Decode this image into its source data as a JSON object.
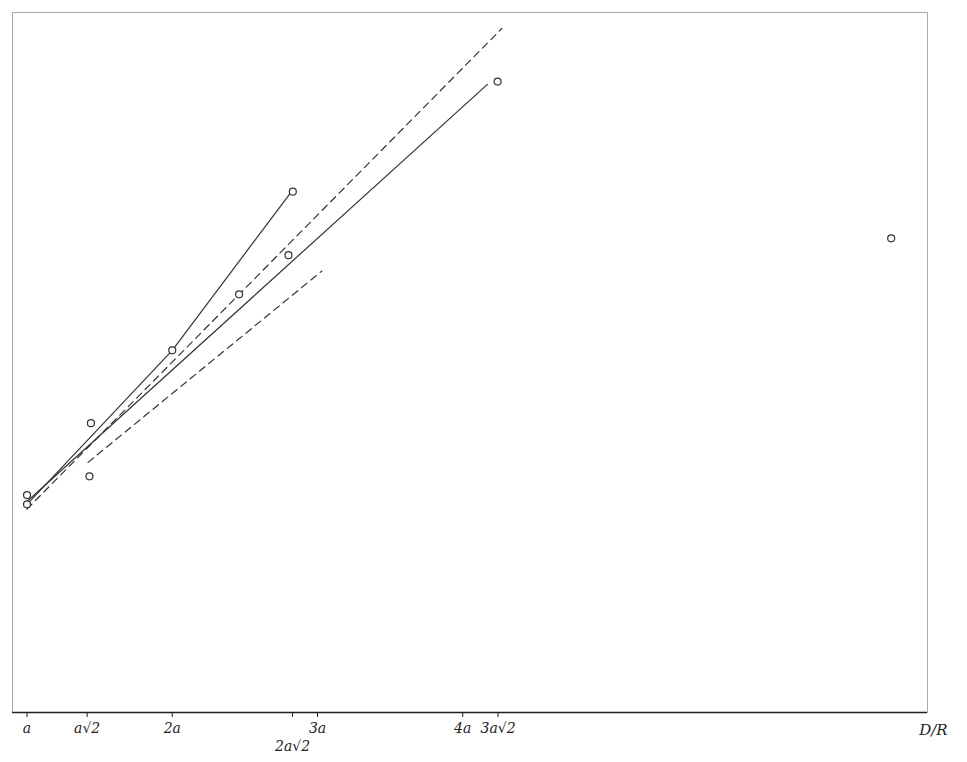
{
  "chart_data": {
    "type": "line",
    "xlabel": "D/R",
    "xlim": [
      0.9,
      7.2
    ],
    "ylim": [
      0,
      75
    ],
    "xticks": [
      {
        "value": 1,
        "label": "a"
      },
      {
        "value": 2,
        "label": "2a"
      },
      {
        "value": 3,
        "label": "3a"
      },
      {
        "value": 4,
        "label": "4a"
      },
      {
        "value": 1.414,
        "label": "a√2"
      },
      {
        "value": 2.828,
        "label": "2a√2"
      },
      {
        "value": 4.243,
        "label": "3a√2"
      }
    ],
    "tick_labels": "x",
    "grid": true,
    "series": [
      {
        "type": "line",
        "line_style": "solid",
        "color": "#333333",
        "x": [
          1.0,
          2.0,
          2.83
        ],
        "values": [
          22.3,
          38.8,
          56.0
        ]
      },
      {
        "type": "line",
        "line_style": "solid",
        "color": "#333333",
        "x": [
          1.0,
          4.17
        ],
        "values": [
          22.6,
          67.3
        ]
      },
      {
        "type": "line",
        "line_style": "dashed",
        "color": "#333333",
        "x": [
          1.0,
          4.27
        ],
        "values": [
          21.8,
          73.3
        ]
      },
      {
        "type": "line",
        "line_style": "dashed",
        "color": "#333333",
        "x": [
          1.42,
          3.03
        ],
        "values": [
          26.8,
          47.3
        ]
      },
      {
        "type": "scatter",
        "marker": "circle",
        "color": "#333333",
        "x": [
          1.0,
          1.0,
          1.44,
          1.43,
          2.0,
          2.46,
          2.8,
          2.83,
          4.24,
          6.95
        ],
        "values": [
          22.3,
          23.3,
          31.0,
          25.3,
          38.8,
          44.8,
          49.0,
          55.8,
          67.6,
          50.8
        ]
      }
    ]
  }
}
